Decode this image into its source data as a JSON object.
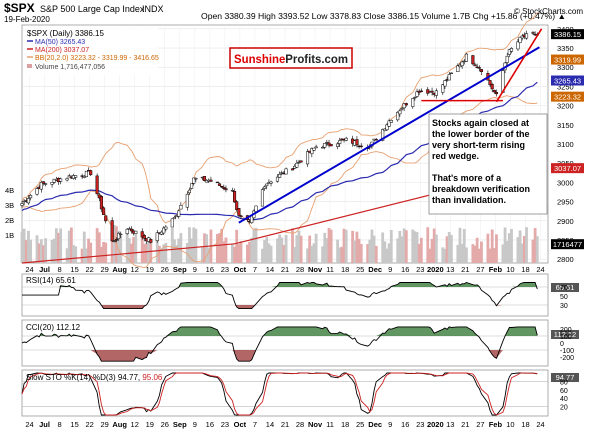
{
  "header": {
    "symbol": "$SPX",
    "name": "S&P 500 Large Cap Index",
    "exchange": "INDX",
    "date": "19-Feb-2020",
    "ohlc": "Open 3380.39  High 3393.52  Low 3378.83  Close 3386.15  Volume 1.7B  Chg +15.86 (+0.47%) ▲",
    "copyright": "© StockCharts.com"
  },
  "legend": {
    "price": "$SPX (Daily) 3386.15",
    "ma50": "MA(50) 3265.43",
    "ma200": "MA(200) 3037.07",
    "bb": "BB(20,2.0) 3223.32 - 3319.99 - 3416.65",
    "volume": "Volume 1,716,477,056"
  },
  "watermark": {
    "part1": "Sunshine",
    "part2": "Profits.com"
  },
  "annotation": {
    "line1": "Stocks again closed at",
    "line2": "the lower border of the",
    "line3": "very short-term rising",
    "line4": "red wedge.",
    "line5": "That's more of a",
    "line6": "breakdown verification",
    "line7": "than invalidation."
  },
  "price_axis": {
    "ticks": [
      "3400",
      "3350",
      "3300",
      "3250",
      "3200",
      "3150",
      "3100",
      "3050",
      "3000",
      "2950",
      "2900",
      "2850",
      "2800"
    ],
    "tags": [
      {
        "label": "3386.15",
        "color": "#000000",
        "value": 3386.15
      },
      {
        "label": "3319.99",
        "color": "#cc6600",
        "value": 3319.99
      },
      {
        "label": "3265.43",
        "color": "#2b2bb0",
        "value": 3265.43
      },
      {
        "label": "3223.32",
        "color": "#cc6600",
        "value": 3223.32
      },
      {
        "label": "3037.07",
        "color": "#cc2222",
        "value": 3037.07
      },
      {
        "label": "1716477",
        "color": "#000000",
        "value": 2839
      }
    ]
  },
  "volume_axis": {
    "ticks": [
      "4B",
      "3B",
      "2B",
      "1B"
    ]
  },
  "x_labels": {
    "main": [
      "24",
      "Jul",
      "8",
      "15",
      "22",
      "29",
      "Aug",
      "12",
      "19",
      "26",
      "Sep",
      "9",
      "16",
      "23",
      "Oct",
      "7",
      "14",
      "21",
      "28",
      "Nov",
      "11",
      "18",
      "25",
      "Dec",
      "9",
      "16",
      "23",
      "2020",
      "13",
      "21",
      "27",
      "Feb",
      "10",
      "18",
      "24"
    ],
    "bottom": [
      "24",
      "Jul",
      "8",
      "15",
      "22",
      "29",
      "Aug",
      "12",
      "19",
      "26",
      "Sep",
      "9",
      "16",
      "23",
      "Oct",
      "7",
      "14",
      "21",
      "28",
      "Nov",
      "11",
      "18",
      "25",
      "Dec",
      "9",
      "16",
      "23",
      "2020",
      "13",
      "21",
      "27",
      "Feb",
      "10",
      "18",
      "24"
    ]
  },
  "indicators": {
    "rsi": {
      "label": "RSI(14) 65.61",
      "tag": "65.61",
      "ticks": [
        "70",
        "50",
        "30"
      ]
    },
    "cci": {
      "label": "CCI(20) 112.12",
      "tag": "112.12",
      "ticks": [
        "200",
        "100",
        "0",
        "-100",
        "-200"
      ]
    },
    "sto": {
      "label": "Slow STO %K(14) %D(3) 94.77, ",
      "d_value": "95.06",
      "tag": "94.77",
      "ticks": [
        "80",
        "60",
        "40",
        "20"
      ]
    }
  },
  "colors": {
    "up": "#ffffff",
    "down": "#cc2222",
    "ma50": "#2b2bb0",
    "ma200": "#cc2222",
    "bb": "#e8a070",
    "trend": "#0000cc",
    "wedge": "#dd0000",
    "osc_fill": "#3a7a3a",
    "osc_fill_neg": "#a04040"
  },
  "chart_data": {
    "type": "candlestick",
    "title": "$SPX S&P 500 Large Cap Index INDX",
    "x_range": [
      "2019-06-24",
      "2020-02-24"
    ],
    "price_range": [
      2790,
      3410
    ],
    "price_anchors": [
      [
        "2019-06-24",
        2945
      ],
      [
        "2019-07-03",
        2995
      ],
      [
        "2019-07-15",
        3014
      ],
      [
        "2019-07-26",
        3025
      ],
      [
        "2019-08-05",
        2845
      ],
      [
        "2019-08-12",
        2882
      ],
      [
        "2019-08-23",
        2847
      ],
      [
        "2019-09-03",
        2907
      ],
      [
        "2019-09-12",
        3009
      ],
      [
        "2019-09-19",
        3006
      ],
      [
        "2019-09-30",
        2976
      ],
      [
        "2019-10-03",
        2910
      ],
      [
        "2019-10-08",
        2893
      ],
      [
        "2019-10-15",
        2995
      ],
      [
        "2019-10-28",
        3039
      ],
      [
        "2019-11-08",
        3093
      ],
      [
        "2019-11-22",
        3110
      ],
      [
        "2019-12-03",
        3093
      ],
      [
        "2019-12-13",
        3168
      ],
      [
        "2019-12-26",
        3240
      ],
      [
        "2020-01-03",
        3235
      ],
      [
        "2020-01-17",
        3329
      ],
      [
        "2020-01-24",
        3295
      ],
      [
        "2020-01-31",
        3225
      ],
      [
        "2020-02-05",
        3334
      ],
      [
        "2020-02-12",
        3379
      ],
      [
        "2020-02-19",
        3386
      ]
    ],
    "series": [
      {
        "name": "MA(50)",
        "last": 3265.43
      },
      {
        "name": "MA(200)",
        "last": 3037.07
      },
      {
        "name": "BB(20,2.0)",
        "lower": 3223.32,
        "middle": 3319.99,
        "upper": 3416.65
      }
    ],
    "trend_lines": {
      "blue_support": [
        [
          "2019-10-03",
          2895
        ],
        [
          "2020-02-20",
          3352
        ]
      ],
      "red_wedge_upper": [
        [
          "2020-01-31",
          3210
        ],
        [
          "2020-02-21",
          3400
        ]
      ],
      "red_horizontal": [
        [
          "2019-12-27",
          3213
        ],
        [
          "2020-02-03",
          3213
        ]
      ]
    },
    "volume_last": 1716477056
  }
}
